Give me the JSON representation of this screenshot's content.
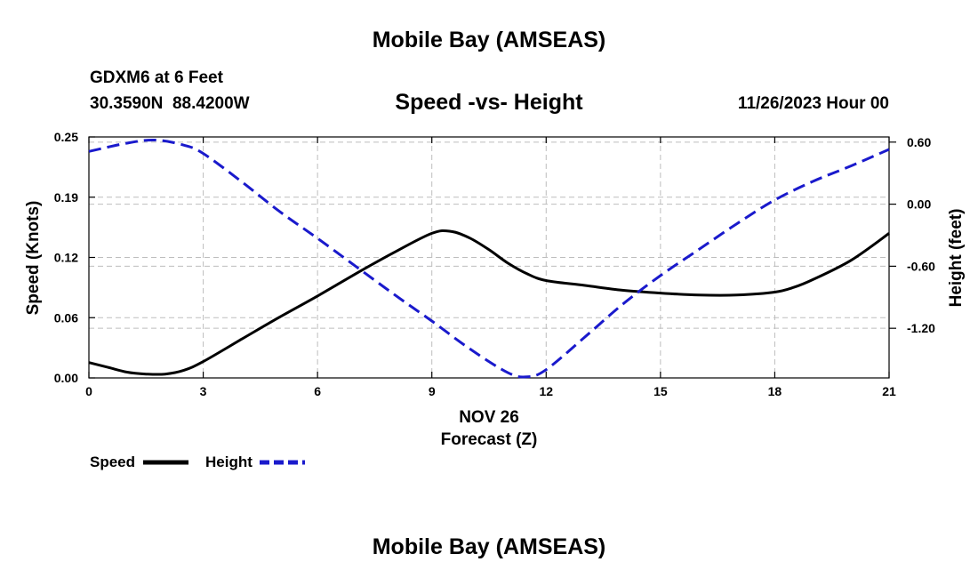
{
  "header": {
    "title_top": "Mobile Bay (AMSEAS)",
    "station": "GDXM6 at 6 Feet",
    "coords": "30.3590N  88.4200W",
    "datetime": "11/26/2023 Hour 00",
    "title_bottom": "Mobile Bay (AMSEAS)"
  },
  "legend": {
    "speed_label": "Speed",
    "height_label": "Height"
  },
  "colors": {
    "speed": "#000000",
    "height": "#1a1acc",
    "grid": "#bdbdbd"
  },
  "chart_data": {
    "type": "line",
    "title": "Speed -vs- Height",
    "xlabel": "Forecast (Z)",
    "xlabel_date": "NOV 26",
    "ylabel": "Speed (Knots)",
    "y2label": "Height (feet)",
    "xlim": [
      0,
      21
    ],
    "ylim": [
      0,
      0.25
    ],
    "y2lim": [
      -1.68,
      0.65
    ],
    "x_ticks": [
      0,
      3,
      6,
      9,
      12,
      15,
      18,
      21
    ],
    "x_tick_labels": [
      "0",
      "3",
      "6",
      "9",
      "12",
      "15",
      "18",
      "21"
    ],
    "y_ticks": [
      0,
      0.0625,
      0.125,
      0.1875,
      0.25
    ],
    "y_tick_labels": [
      "0.00",
      "0.06",
      "0.12",
      "0.19",
      "0.25"
    ],
    "y2_ticks": [
      0.6,
      0.0,
      -0.6,
      -1.2
    ],
    "y2_tick_labels": [
      "0.60",
      "0.00",
      "-0.60",
      "-1.20"
    ],
    "grid": true,
    "series": [
      {
        "name": "Speed",
        "axis": "left",
        "style": "solid",
        "x": [
          0,
          0.5,
          1,
          1.5,
          2,
          2.5,
          3,
          4,
          5,
          6,
          7,
          8,
          9,
          9.5,
          10,
          10.5,
          11,
          11.5,
          12,
          13,
          14,
          15,
          16,
          17,
          18,
          18.5,
          19,
          20,
          21
        ],
        "y": [
          0.016,
          0.011,
          0.006,
          0.004,
          0.004,
          0.008,
          0.017,
          0.04,
          0.063,
          0.085,
          0.108,
          0.13,
          0.15,
          0.152,
          0.145,
          0.133,
          0.119,
          0.108,
          0.101,
          0.096,
          0.091,
          0.088,
          0.086,
          0.086,
          0.089,
          0.094,
          0.102,
          0.122,
          0.15
        ]
      },
      {
        "name": "Height",
        "axis": "right",
        "style": "dashed",
        "x": [
          0,
          1,
          1.75,
          2.5,
          3,
          4,
          5,
          6,
          7,
          8,
          9,
          10,
          11,
          11.5,
          12,
          13,
          14,
          15,
          16,
          17,
          18,
          19,
          20,
          21
        ],
        "y": [
          0.51,
          0.59,
          0.62,
          0.57,
          0.49,
          0.22,
          -0.07,
          -0.33,
          -0.6,
          -0.87,
          -1.13,
          -1.4,
          -1.63,
          -1.67,
          -1.6,
          -1.29,
          -0.97,
          -0.69,
          -0.44,
          -0.19,
          0.04,
          0.22,
          0.37,
          0.53
        ]
      }
    ]
  }
}
